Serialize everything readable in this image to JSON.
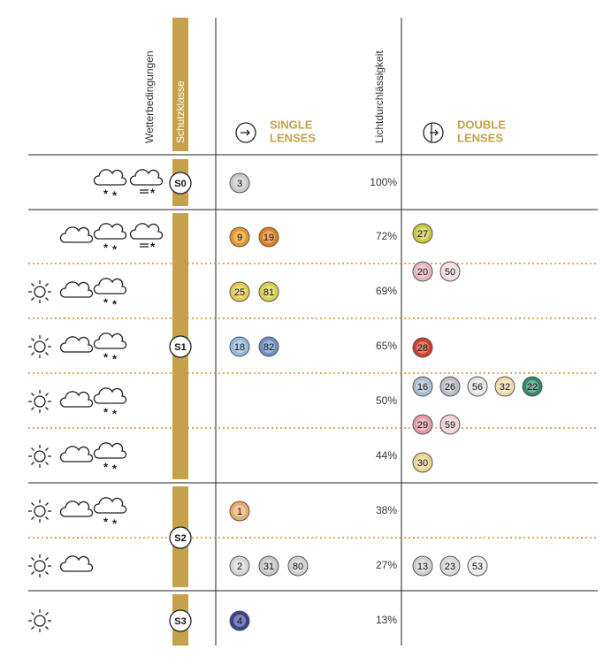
{
  "header": {
    "weather": "Wetterbedingungen",
    "protection_class": "Schutzklasse",
    "single": [
      "SINGLE",
      "LENSES"
    ],
    "transmission": "Lichtdurchlässigkeit",
    "double": [
      "DOUBLE",
      "LENSES"
    ]
  },
  "classes": [
    {
      "label": "S0",
      "rows": [
        {
          "transmission": "100%",
          "single": [
            {
              "label": 3,
              "color": "#c8c8c8"
            }
          ]
        }
      ],
      "double": []
    },
    {
      "label": "S1",
      "rows": [
        {
          "transmission": "72%",
          "single": [
            {
              "label": 9,
              "color": "#e8961e"
            },
            {
              "label": 19,
              "color": "#e0801c"
            }
          ]
        },
        {
          "transmission": "69%",
          "single": [
            {
              "label": 25,
              "color": "#e8c84a"
            },
            {
              "label": 81,
              "color": "#d6d24a"
            }
          ]
        },
        {
          "transmission": "65%",
          "single": [
            {
              "label": 18,
              "color": "#8fb8e0"
            },
            {
              "label": 82,
              "color": "#6e8fc2"
            }
          ]
        },
        {
          "transmission": "50%",
          "single": []
        },
        {
          "transmission": "44%",
          "single": []
        }
      ],
      "double": [
        [
          {
            "label": 27,
            "color": "#c9c83c"
          }
        ],
        [
          {
            "label": 20,
            "color": "#e8b4c0"
          },
          {
            "label": 50,
            "color": "#f2dde2"
          }
        ],
        [
          {
            "label": 28,
            "color": "#d23c2a"
          }
        ],
        [
          {
            "label": 16,
            "color": "#a9bed0"
          },
          {
            "label": 26,
            "color": "#b8bcc4"
          },
          {
            "label": 56,
            "color": "#e6e6e6"
          },
          {
            "label": 32,
            "color": "#f0dcaa"
          },
          {
            "label": 22,
            "color": "#2f8a6a"
          }
        ],
        [
          {
            "label": 29,
            "color": "#e39aa8"
          },
          {
            "label": 59,
            "color": "#f3d3da"
          }
        ],
        [
          {
            "label": 30,
            "color": "#ecd58c"
          }
        ]
      ]
    },
    {
      "label": "S2",
      "rows": [
        {
          "transmission": "38%",
          "single": [
            {
              "label": 1,
              "color": "#eaa866"
            }
          ]
        },
        {
          "transmission": "27%",
          "single": [
            {
              "label": 2,
              "color": "#d4d4d4"
            },
            {
              "label": 31,
              "color": "#c8c8c8"
            },
            {
              "label": 80,
              "color": "#cfcfcf"
            }
          ]
        }
      ],
      "double": [
        [
          {
            "label": 13,
            "color": "#cfcfcf"
          },
          {
            "label": 23,
            "color": "#d8d8d8"
          },
          {
            "label": 53,
            "color": "#ececec"
          }
        ]
      ]
    },
    {
      "label": "S3",
      "rows": [
        {
          "transmission": "13%",
          "single": [
            {
              "label": 4,
              "color": "#3a3f8f"
            }
          ]
        }
      ],
      "double": []
    }
  ]
}
